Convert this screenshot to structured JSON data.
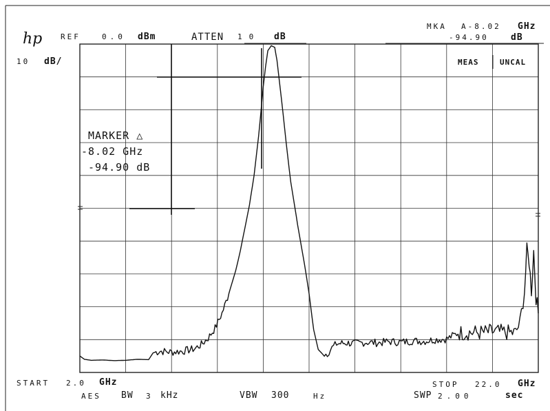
{
  "header": {
    "logo": "hp",
    "ref_label": "REF",
    "ref_value": "0.0",
    "ref_unit": "dBm",
    "atten_label": "ATTEN",
    "atten_value": "10",
    "atten_unit": "dB",
    "mkr_label": "MKA",
    "mkr_freq": "A-8.02",
    "mkr_freq_unit": "GHz",
    "mkr_level": "-94.90",
    "mkr_level_unit": "dB",
    "scale_value": "10",
    "scale_unit": "dB/",
    "meas": "MEAS",
    "uncal": "UNCAL"
  },
  "marker_box": {
    "title": "MARKER",
    "symbol": "△",
    "freq": "-8.02 GHz",
    "level": "-94.90 dB"
  },
  "footer": {
    "start_label": "START",
    "start_value": "2.0",
    "start_unit": "GHz",
    "res_label": "AES",
    "res_bw": "BW",
    "res_value": "3",
    "res_unit": "kHz",
    "vbw_label": "VBW",
    "vbw_value": "300",
    "vbw_unit": "Hz",
    "stop_label": "STOP",
    "stop_value": "22.0",
    "stop_unit": "GHz",
    "swp_label": "SWP",
    "swp_value": "2.00",
    "swp_unit": "sec"
  },
  "chart_data": {
    "type": "line",
    "xlim": [
      2.0,
      22.0
    ],
    "ylim": [
      -100,
      0
    ],
    "x_divisions": 10,
    "y_divisions": 10,
    "grid": true,
    "trace_color": "#111111",
    "series": [
      {
        "x": [
          2.0,
          2.2,
          2.5,
          3.0,
          3.5,
          4.0,
          4.5,
          5.0,
          5.2,
          5.5,
          6.0,
          6.5,
          7.0,
          7.3,
          7.6,
          7.9,
          8.2,
          8.5,
          8.8,
          9.0,
          9.2,
          9.4,
          9.6,
          9.8,
          10.0,
          10.1,
          10.2,
          10.35,
          10.5,
          10.6,
          10.8,
          11.0,
          11.2,
          11.5,
          11.8,
          12.0,
          12.2,
          12.4,
          12.6,
          12.8,
          13.0,
          13.2,
          13.6,
          14.0,
          14.5,
          15.0,
          15.5,
          16.0,
          16.5,
          17.0,
          17.5,
          18.0,
          18.5,
          19.0,
          19.5,
          20.0,
          20.5,
          21.0,
          21.2,
          21.4,
          21.5,
          21.6,
          21.7,
          21.8,
          21.9,
          22.0
        ],
        "y": [
          -95,
          -96,
          -96.3,
          -96.2,
          -96.4,
          -96.3,
          -96.0,
          -96.1,
          -94,
          -93.5,
          -93.8,
          -93.5,
          -92.8,
          -91.5,
          -89.5,
          -86.5,
          -82,
          -76,
          -69,
          -63,
          -56,
          -49,
          -40,
          -28,
          -13,
          -7,
          -2,
          -0.5,
          -1,
          -5,
          -17,
          -30,
          -42,
          -55,
          -67,
          -76,
          -87,
          -93,
          -94.5,
          -94.2,
          -92.5,
          -91.3,
          -91.0,
          -91.2,
          -90.8,
          -91.0,
          -90.6,
          -90.8,
          -90.4,
          -90.5,
          -90.0,
          -89.8,
          -88,
          -87.8,
          -87.9,
          -87.6,
          -87.8,
          -88,
          -85,
          -75,
          -63,
          -66,
          -75,
          -63,
          -77,
          -82
        ]
      }
    ]
  }
}
